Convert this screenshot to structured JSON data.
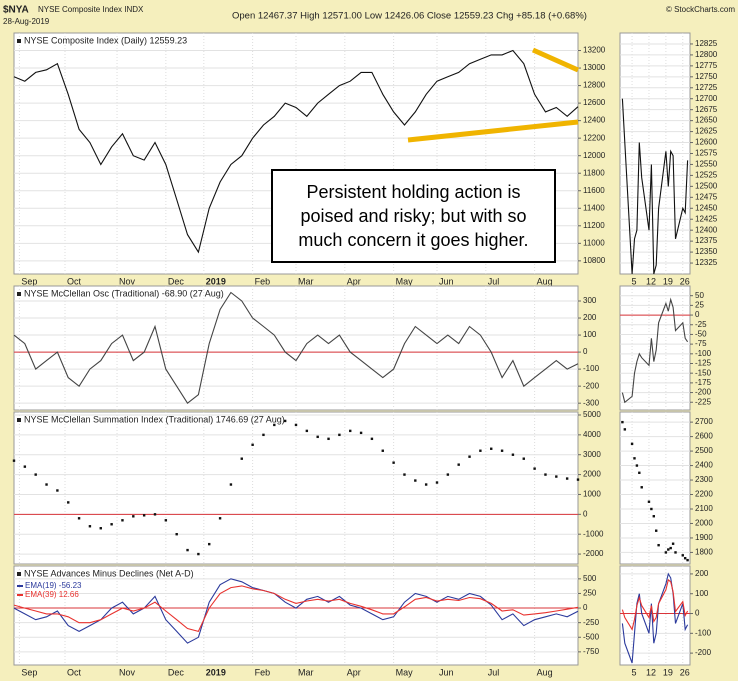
{
  "header": {
    "symbol": "$NYA",
    "name": "NYSE Composite Index INDX",
    "date": "28-Aug-2019",
    "quote": "Open 12467.37 High 12571.00 Low 12426.06 Close 12559.23 Chg +85.18 (+0.68%)",
    "credit": "© StockCharts.com"
  },
  "chart_data": [
    {
      "type": "line",
      "title": "NYSE Composite Index (Daily) 12559.23",
      "annotation": [
        "Persistent holding action is",
        "poised and risky; but with so",
        "much concern it goes higher."
      ],
      "series": [
        {
          "color": "#111111",
          "values": [
            12900,
            12850,
            12950,
            12980,
            13050,
            12700,
            12300,
            12150,
            11900,
            12100,
            12250,
            12000,
            11950,
            12150,
            11900,
            11500,
            11100,
            10900,
            11400,
            11700,
            11900,
            12000,
            12200,
            12350,
            12450,
            12600,
            12550,
            12450,
            12600,
            12700,
            12800,
            12850,
            12950,
            12950,
            12700,
            12500,
            12350,
            12500,
            12700,
            12850,
            12900,
            12950,
            13050,
            13100,
            13150,
            13150,
            13200,
            13050,
            12700,
            12500,
            12550,
            12450,
            12559.23
          ]
        }
      ],
      "xlim": [
        0,
        52
      ],
      "xticks": [
        {
          "value": 0.5,
          "label": "Sep"
        },
        {
          "value": 4.7,
          "label": "Oct"
        },
        {
          "value": 9.5,
          "label": "Nov"
        },
        {
          "value": 14,
          "label": "Dec"
        },
        {
          "value": 17.5,
          "label": "2019"
        },
        {
          "value": 22,
          "label": "Feb"
        },
        {
          "value": 26,
          "label": "Mar"
        },
        {
          "value": 30.5,
          "label": "Apr"
        },
        {
          "value": 35,
          "label": "May"
        },
        {
          "value": 39,
          "label": "Jun"
        },
        {
          "value": 43.5,
          "label": "Jul"
        },
        {
          "value": 48,
          "label": "Aug"
        }
      ],
      "ylim": [
        10650,
        13400
      ],
      "yticks": [
        10800,
        11000,
        11200,
        11400,
        11600,
        11800,
        12000,
        12200,
        12400,
        12600,
        12800,
        13000,
        13200
      ]
    },
    {
      "type": "line",
      "title": "NYSE McClellan Osc (Traditional) -68.90 (27 Aug)",
      "reference_line": 0,
      "series": [
        {
          "color": "#444444",
          "values": [
            100,
            50,
            -100,
            -50,
            0,
            -150,
            -200,
            -100,
            -50,
            50,
            100,
            -50,
            0,
            150,
            -100,
            -200,
            -300,
            -250,
            50,
            250,
            350,
            300,
            200,
            150,
            100,
            0,
            -50,
            50,
            100,
            50,
            100,
            0,
            -50,
            -100,
            -150,
            -100,
            50,
            150,
            100,
            50,
            100,
            50,
            150,
            100,
            0,
            -150,
            -50,
            -200,
            -150,
            -100,
            -50,
            -100,
            -68.9
          ]
        }
      ],
      "xlim": [
        0,
        52
      ],
      "ylim": [
        -340,
        388
      ],
      "yticks": [
        -300,
        -200,
        -100,
        0,
        100,
        200,
        300
      ]
    },
    {
      "type": "dots",
      "title": "NYSE McClellan Summation Index (Traditional) 1746.69 (27 Aug)",
      "reference_line": 0,
      "series": [
        {
          "color": "#111111",
          "values": [
            2700,
            2400,
            2000,
            1500,
            1200,
            600,
            -200,
            -600,
            -700,
            -500,
            -300,
            -100,
            -50,
            0,
            -300,
            -1000,
            -1800,
            -2000,
            -1500,
            -200,
            1500,
            2800,
            3500,
            4000,
            4500,
            4700,
            4500,
            4200,
            3900,
            3800,
            4000,
            4200,
            4100,
            3800,
            3200,
            2600,
            2000,
            1700,
            1500,
            1600,
            2000,
            2500,
            2900,
            3200,
            3300,
            3200,
            3000,
            2800,
            2300,
            2000,
            1900,
            1800,
            1746.69
          ]
        }
      ],
      "xlim": [
        0,
        52
      ],
      "ylim": [
        -2500,
        5150
      ],
      "yticks": [
        -2000,
        -1000,
        0,
        1000,
        2000,
        3000,
        4000,
        5000
      ]
    },
    {
      "type": "line",
      "title": "NYSE Advances Minus Declines (Net A-D)",
      "reference_line": 0,
      "series": [
        {
          "name": "EMA(19) -56.23",
          "color": "#2b3a9c",
          "values": [
            0,
            -100,
            -200,
            -150,
            -50,
            -300,
            -400,
            -300,
            -200,
            0,
            100,
            -100,
            0,
            200,
            -200,
            -400,
            -600,
            -500,
            100,
            400,
            500,
            450,
            350,
            300,
            250,
            100,
            0,
            150,
            200,
            100,
            200,
            50,
            0,
            -100,
            -200,
            -150,
            100,
            250,
            200,
            100,
            200,
            150,
            250,
            200,
            50,
            -200,
            -100,
            -300,
            -200,
            -150,
            -100,
            -150,
            -56.23
          ]
        },
        {
          "name": "EMA(39) 12.66",
          "color": "#e8322e",
          "values": [
            50,
            0,
            -50,
            -100,
            -100,
            -150,
            -250,
            -250,
            -200,
            -100,
            0,
            -50,
            0,
            100,
            -50,
            -200,
            -350,
            -400,
            0,
            250,
            350,
            380,
            330,
            300,
            250,
            150,
            80,
            120,
            150,
            120,
            150,
            80,
            30,
            -30,
            -100,
            -100,
            20,
            150,
            180,
            120,
            150,
            130,
            180,
            160,
            80,
            -50,
            -30,
            -120,
            -100,
            -80,
            -50,
            -20,
            12.66
          ]
        }
      ],
      "xlim": [
        0,
        52
      ],
      "xticks": [
        {
          "value": 0.5,
          "label": "Sep"
        },
        {
          "value": 4.7,
          "label": "Oct"
        },
        {
          "value": 9.5,
          "label": "Nov"
        },
        {
          "value": 14,
          "label": "Dec"
        },
        {
          "value": 17.5,
          "label": "2019"
        },
        {
          "value": 22,
          "label": "Feb"
        },
        {
          "value": 26,
          "label": "Mar"
        },
        {
          "value": 30.5,
          "label": "Apr"
        },
        {
          "value": 35,
          "label": "May"
        },
        {
          "value": 39,
          "label": "Jun"
        },
        {
          "value": 43.5,
          "label": "Jul"
        },
        {
          "value": 48,
          "label": "Aug"
        }
      ],
      "ylim": [
        -975,
        720
      ],
      "yticks": [
        -750,
        -500,
        -250,
        0,
        250,
        500
      ]
    },
    {
      "type": "line",
      "x": [
        1,
        2,
        5,
        6,
        7,
        8,
        9,
        12,
        13,
        14,
        15,
        16,
        19,
        20,
        21,
        22,
        23,
        26,
        27,
        28
      ],
      "series": [
        {
          "color": "#111111",
          "values": [
            12700,
            12600,
            12300,
            12380,
            12400,
            12600,
            12520,
            12400,
            12550,
            12300,
            12320,
            12450,
            12580,
            12500,
            12580,
            12570,
            12380,
            12450,
            12440,
            12559.23
          ]
        }
      ],
      "xlim": [
        0,
        29
      ],
      "xticks": [
        5,
        12,
        19,
        26
      ],
      "ylim": [
        12300,
        12850
      ],
      "yticks": [
        12325,
        12350,
        12375,
        12400,
        12425,
        12450,
        12475,
        12500,
        12525,
        12550,
        12575,
        12600,
        12625,
        12650,
        12675,
        12700,
        12725,
        12750,
        12775,
        12800,
        12825
      ]
    },
    {
      "type": "line",
      "x": [
        1,
        2,
        5,
        6,
        7,
        8,
        9,
        12,
        13,
        14,
        15,
        16,
        19,
        20,
        21,
        22,
        23,
        26,
        27,
        28
      ],
      "reference_line": 0,
      "series": [
        {
          "color": "#444444",
          "values": [
            -200,
            -225,
            -210,
            -150,
            -120,
            -100,
            -110,
            -130,
            -60,
            -120,
            -90,
            -20,
            30,
            10,
            40,
            20,
            -40,
            -20,
            -60,
            -68.9
          ]
        }
      ],
      "xlim": [
        0,
        29
      ],
      "ylim": [
        -245,
        75
      ],
      "yticks": [
        -225,
        -200,
        -175,
        -150,
        -125,
        -100,
        -75,
        -50,
        -25,
        0,
        25,
        50
      ]
    },
    {
      "type": "dots",
      "x": [
        1,
        2,
        5,
        6,
        7,
        8,
        9,
        12,
        13,
        14,
        15,
        16,
        19,
        20,
        21,
        22,
        23,
        26,
        27,
        28
      ],
      "series": [
        {
          "color": "#111111",
          "values": [
            2700,
            2650,
            2550,
            2450,
            2400,
            2350,
            2250,
            2150,
            2100,
            2050,
            1950,
            1850,
            1800,
            1820,
            1830,
            1860,
            1800,
            1780,
            1760,
            1746.69
          ]
        }
      ],
      "xlim": [
        0,
        29
      ],
      "ylim": [
        1720,
        2770
      ],
      "yticks": [
        1800,
        1900,
        2000,
        2100,
        2200,
        2300,
        2400,
        2500,
        2600,
        2700
      ]
    },
    {
      "type": "line",
      "x": [
        1,
        2,
        5,
        6,
        7,
        8,
        9,
        12,
        13,
        14,
        15,
        16,
        19,
        20,
        21,
        22,
        23,
        26,
        27,
        28
      ],
      "reference_line": 0,
      "series": [
        {
          "color": "#2b3a9c",
          "values": [
            -50,
            -150,
            -250,
            -100,
            50,
            100,
            0,
            -100,
            50,
            -150,
            -100,
            50,
            150,
            200,
            180,
            100,
            -50,
            50,
            -80,
            -56.23
          ]
        },
        {
          "color": "#e8322e",
          "values": [
            20,
            -20,
            -80,
            -30,
            40,
            80,
            40,
            -20,
            40,
            -40,
            -20,
            50,
            120,
            170,
            160,
            110,
            10,
            60,
            -10,
            12.66
          ]
        }
      ],
      "xlim": [
        0,
        29
      ],
      "xticks": [
        5,
        12,
        19,
        26
      ],
      "ylim": [
        -260,
        240
      ],
      "yticks": [
        -200,
        -100,
        0,
        100,
        200
      ]
    }
  ]
}
